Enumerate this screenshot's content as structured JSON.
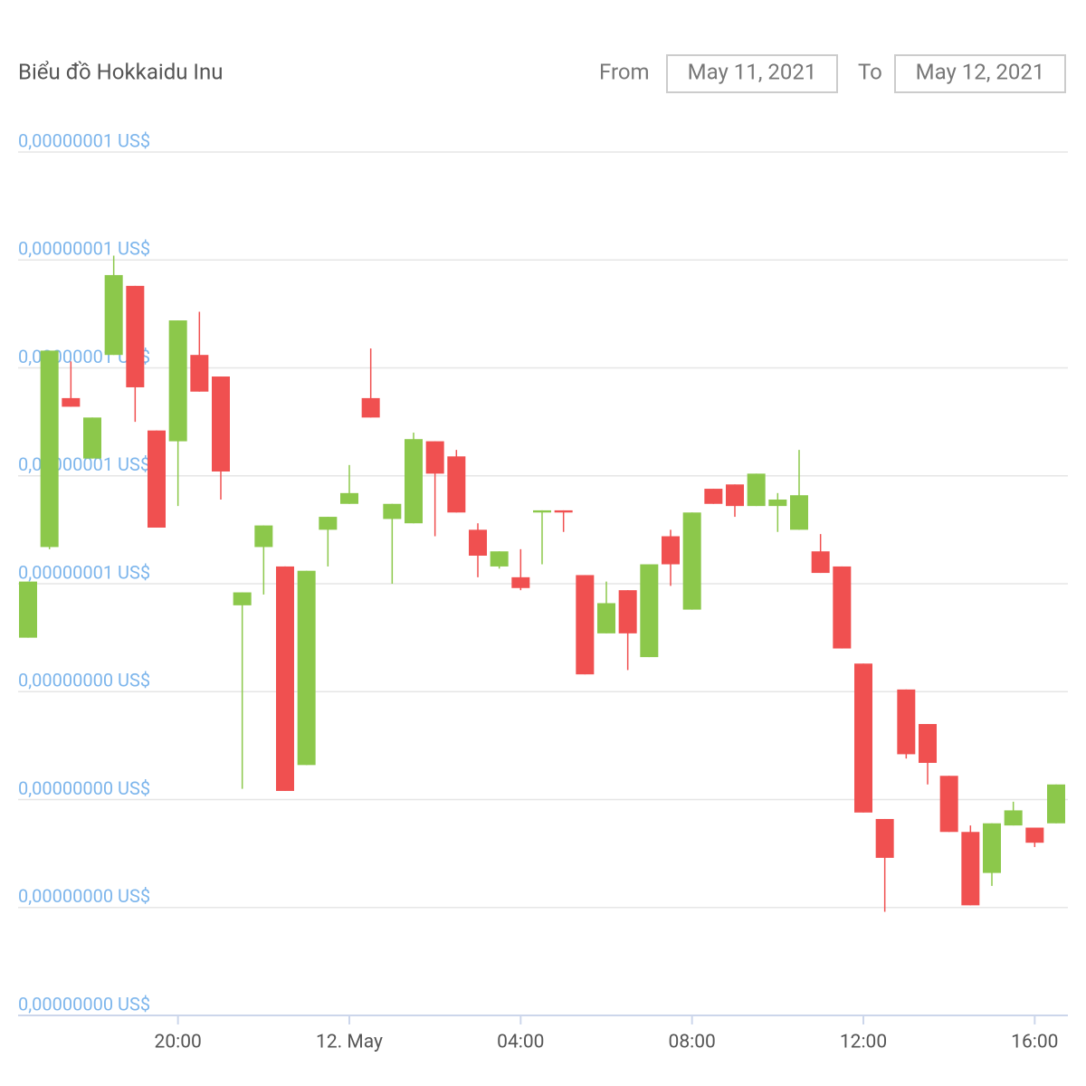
{
  "chart_data": {
    "type": "candlestick",
    "title": "Biểu đồ Hokkaidu Inu",
    "date_range": {
      "from_label": "From",
      "from": "May 11, 2021",
      "to_label": "To",
      "to": "May 12, 2021"
    },
    "up_color": "#8cc84b",
    "down_color": "#f05050",
    "grid": true,
    "x": [
      "2021-05-11 16:30",
      "2021-05-11 17:00",
      "2021-05-11 17:30",
      "2021-05-11 18:00",
      "2021-05-11 18:30",
      "2021-05-11 19:00",
      "2021-05-11 19:30",
      "2021-05-11 20:00",
      "2021-05-11 20:30",
      "2021-05-11 21:00",
      "2021-05-11 21:30",
      "2021-05-11 22:00",
      "2021-05-11 22:30",
      "2021-05-11 23:00",
      "2021-05-11 23:30",
      "2021-05-12 00:00",
      "2021-05-12 00:30",
      "2021-05-12 01:00",
      "2021-05-12 01:30",
      "2021-05-12 02:00",
      "2021-05-12 02:30",
      "2021-05-12 03:00",
      "2021-05-12 03:30",
      "2021-05-12 04:00",
      "2021-05-12 04:30",
      "2021-05-12 05:00",
      "2021-05-12 05:30",
      "2021-05-12 06:00",
      "2021-05-12 06:30",
      "2021-05-12 07:00",
      "2021-05-12 07:30",
      "2021-05-12 08:00",
      "2021-05-12 08:30",
      "2021-05-12 09:00",
      "2021-05-12 09:30",
      "2021-05-12 10:00",
      "2021-05-12 10:30",
      "2021-05-12 11:00",
      "2021-05-12 11:30",
      "2021-05-12 12:00",
      "2021-05-12 12:30",
      "2021-05-12 13:00",
      "2021-05-12 13:30",
      "2021-05-12 14:00",
      "2021-05-12 14:30",
      "2021-05-12 15:00",
      "2021-05-12 15:30",
      "2021-05-12 16:00",
      "2021-05-12 16:30"
    ],
    "open": [
      4.95e-09,
      5.37e-09,
      6.06e-09,
      5.78e-09,
      6.26e-09,
      6.58e-09,
      5.91e-09,
      5.86e-09,
      6.26e-09,
      6.16e-09,
      5.1e-09,
      5.37e-09,
      5.28e-09,
      4.36e-09,
      5.45e-09,
      5.57e-09,
      6.06e-09,
      5.5e-09,
      5.48e-09,
      5.86e-09,
      5.79e-09,
      5.45e-09,
      5.28e-09,
      5.23e-09,
      5.53e-09,
      5.54e-09,
      5.24e-09,
      4.97e-09,
      5.17e-09,
      4.86e-09,
      5.42e-09,
      5.08e-09,
      5.64e-09,
      5.66e-09,
      5.56e-09,
      5.56e-09,
      5.45e-09,
      5.35e-09,
      5.28e-09,
      4.83e-09,
      4.11e-09,
      4.71e-09,
      4.55e-09,
      4.31e-09,
      4.05e-09,
      3.86e-09,
      4.08e-09,
      4.07e-09,
      4.09e-09
    ],
    "high": [
      5.21e-09,
      6.28e-09,
      6.23e-09,
      5.97e-09,
      6.72e-09,
      6.58e-09,
      5.91e-09,
      6.42e-09,
      6.46e-09,
      6.16e-09,
      5.16e-09,
      5.47e-09,
      5.28e-09,
      5.26e-09,
      5.51e-09,
      5.75e-09,
      6.29e-09,
      5.57e-09,
      5.9e-09,
      5.86e-09,
      5.82e-09,
      5.48e-09,
      5.35e-09,
      5.36e-09,
      5.54e-09,
      5.54e-09,
      5.24e-09,
      5.21e-09,
      5.17e-09,
      5.29e-09,
      5.45e-09,
      5.53e-09,
      5.64e-09,
      5.66e-09,
      5.71e-09,
      5.62e-09,
      5.82e-09,
      5.43e-09,
      5.28e-09,
      4.83e-09,
      4.11e-09,
      4.71e-09,
      4.55e-09,
      4.31e-09,
      4.08e-09,
      4.09e-09,
      4.19e-09,
      4.07e-09,
      4.27e-09
    ],
    "low": [
      4.95e-09,
      5.36e-09,
      6.02e-09,
      5.78e-09,
      6.26e-09,
      5.95e-09,
      5.46e-09,
      5.56e-09,
      6.09e-09,
      5.59e-09,
      4.25e-09,
      5.15e-09,
      4.24e-09,
      4.36e-09,
      5.28e-09,
      5.57e-09,
      5.97e-09,
      5.2e-09,
      5.48e-09,
      5.42e-09,
      5.53e-09,
      5.23e-09,
      5.27e-09,
      5.17e-09,
      5.29e-09,
      5.44e-09,
      4.78e-09,
      4.97e-09,
      4.8e-09,
      4.86e-09,
      5.19e-09,
      5.08e-09,
      5.57e-09,
      5.51e-09,
      5.56e-09,
      5.44e-09,
      5.45e-09,
      5.25e-09,
      4.9e-09,
      4.14e-09,
      3.68e-09,
      4.39e-09,
      4.27e-09,
      4.05e-09,
      3.71e-09,
      3.8e-09,
      4.08e-09,
      3.98e-09,
      4.09e-09
    ],
    "close": [
      5.21e-09,
      6.28e-09,
      6.02e-09,
      5.97e-09,
      6.63e-09,
      6.11e-09,
      5.46e-09,
      6.42e-09,
      6.09e-09,
      5.72e-09,
      5.16e-09,
      5.47e-09,
      4.24e-09,
      5.26e-09,
      5.51e-09,
      5.62e-09,
      5.97e-09,
      5.57e-09,
      5.87e-09,
      5.71e-09,
      5.53e-09,
      5.33e-09,
      5.35e-09,
      5.18e-09,
      5.54e-09,
      5.53e-09,
      4.78e-09,
      5.11e-09,
      4.97e-09,
      5.29e-09,
      5.29e-09,
      5.53e-09,
      5.57e-09,
      5.56e-09,
      5.71e-09,
      5.59e-09,
      5.61e-09,
      5.25e-09,
      4.9e-09,
      4.14e-09,
      3.93e-09,
      4.41e-09,
      4.37e-09,
      4.05e-09,
      3.71e-09,
      4.09e-09,
      4.15e-09,
      4e-09,
      4.27e-09
    ],
    "xticks": [
      {
        "value": "2021-05-11 20:00",
        "label": "20:00"
      },
      {
        "value": "2021-05-12 00:00",
        "label": "12. May"
      },
      {
        "value": "2021-05-12 04:00",
        "label": "04:00"
      },
      {
        "value": "2021-05-12 08:00",
        "label": "08:00"
      },
      {
        "value": "2021-05-12 12:00",
        "label": "12:00"
      },
      {
        "value": "2021-05-12 16:00",
        "label": "16:00"
      }
    ],
    "ylim": [
      3.2e-09,
      7.2e-09
    ],
    "yticks": [
      {
        "value": 3.2e-09,
        "label": "0,00000000 US$"
      },
      {
        "value": 3.7e-09,
        "label": "0,00000000 US$"
      },
      {
        "value": 4.2e-09,
        "label": "0,00000000 US$"
      },
      {
        "value": 4.7e-09,
        "label": "0,00000000 US$"
      },
      {
        "value": 5.2e-09,
        "label": "0,00000001 US$"
      },
      {
        "value": 5.7e-09,
        "label": "0,00000001 US$"
      },
      {
        "value": 6.2e-09,
        "label": "0,00000001 US$"
      },
      {
        "value": 6.7e-09,
        "label": "0,00000001 US$"
      },
      {
        "value": 7.2e-09,
        "label": "0,00000001 US$"
      }
    ]
  }
}
